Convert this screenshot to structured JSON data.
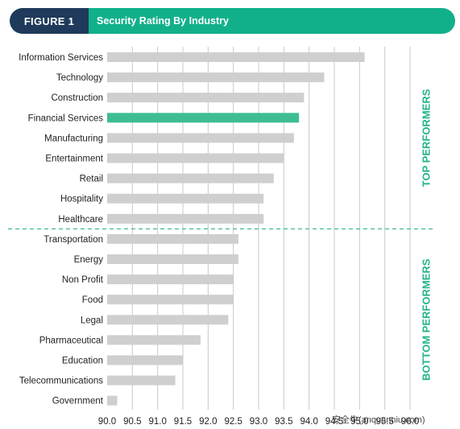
{
  "header": {
    "figure_label": "FIGURE 1",
    "title": "Security Rating By Industry"
  },
  "colors": {
    "banner_dark": "#1f3a5a",
    "banner_teal": "#12b08a",
    "bar_default": "#cfcfcf",
    "bar_highlight": "#3ebd93",
    "divider": "#3ebd93",
    "group_label": "#22b38a",
    "grid": "#c8c8c8"
  },
  "chart_data": {
    "type": "bar",
    "orientation": "horizontal",
    "categories": [
      "Information Services",
      "Technology",
      "Construction",
      "Financial Services",
      "Manufacturing",
      "Entertainment",
      "Retail",
      "Hospitality",
      "Healthcare",
      "Transportation",
      "Energy",
      "Non Profit",
      "Food",
      "Legal",
      "Pharmaceutical",
      "Education",
      "Telecommunications",
      "Government"
    ],
    "values": [
      95.1,
      94.3,
      93.9,
      93.8,
      93.7,
      93.5,
      93.3,
      93.1,
      93.1,
      92.6,
      92.6,
      92.5,
      92.5,
      92.4,
      91.85,
      91.5,
      91.35,
      90.2
    ],
    "highlight": "Financial Services",
    "xlim": [
      90.0,
      96.0
    ],
    "ticks": [
      "90.0",
      "90.5",
      "91.0",
      "91.5",
      "92.0",
      "92.5",
      "93.0",
      "93.5",
      "94.0",
      "94.5",
      "95.0",
      "95.5",
      "96.0"
    ],
    "tick_values": [
      90.0,
      90.5,
      91.0,
      91.5,
      92.0,
      92.5,
      93.0,
      93.5,
      94.0,
      94.5,
      95.0,
      95.5,
      96.0
    ],
    "groups": [
      {
        "label": "TOP PERFORMERS",
        "count": 9
      },
      {
        "label": "BOTTOM PERFORMERS",
        "count": 9
      }
    ],
    "grid": true
  },
  "watermark": "安全牛(anquanniu.com)"
}
